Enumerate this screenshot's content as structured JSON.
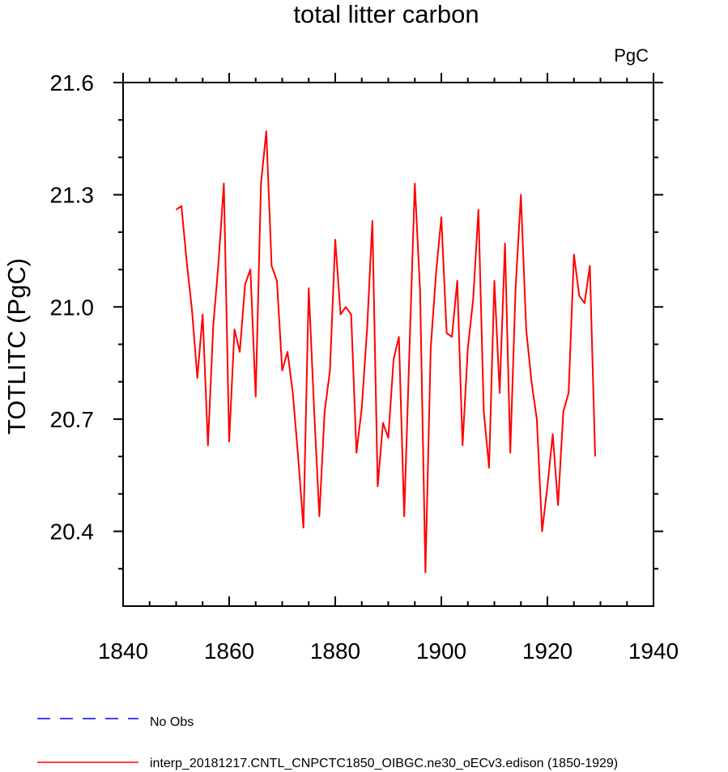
{
  "chart_data": {
    "type": "line",
    "title": "total litter carbon",
    "units_label": "PgC",
    "xlabel": "",
    "ylabel": "TOTLITC  (PgC)",
    "xlim": [
      1840,
      1940
    ],
    "ylim": [
      20.2,
      21.6
    ],
    "x_ticks": [
      1840,
      1860,
      1880,
      1900,
      1920,
      1940
    ],
    "x_tick_labels": [
      "1840",
      "1860",
      "1880",
      "1900",
      "1920",
      "1940"
    ],
    "y_ticks": [
      20.4,
      20.7,
      21.0,
      21.3,
      21.6
    ],
    "y_tick_labels": [
      "20.4",
      "20.7",
      "21.0",
      "21.3",
      "21.6"
    ],
    "x_minor_ticks": [
      1845,
      1850,
      1855,
      1865,
      1870,
      1875,
      1885,
      1890,
      1895,
      1905,
      1910,
      1915,
      1925,
      1930,
      1935
    ],
    "y_minor_ticks": [
      20.3,
      20.5,
      20.6,
      20.8,
      20.9,
      21.1,
      21.2,
      21.4,
      21.5
    ],
    "series": [
      {
        "name": "interp_20181217.CNTL_CNPCTC1850_OIBGC.ne30_oECv3.edison (1850-1929)",
        "color": "#ff0000",
        "x": [
          1850,
          1851,
          1852,
          1853,
          1854,
          1855,
          1856,
          1857,
          1858,
          1859,
          1860,
          1861,
          1862,
          1863,
          1864,
          1865,
          1866,
          1867,
          1868,
          1869,
          1870,
          1871,
          1872,
          1873,
          1874,
          1875,
          1876,
          1877,
          1878,
          1879,
          1880,
          1881,
          1882,
          1883,
          1884,
          1885,
          1886,
          1887,
          1888,
          1889,
          1890,
          1891,
          1892,
          1893,
          1894,
          1895,
          1896,
          1897,
          1898,
          1899,
          1900,
          1901,
          1902,
          1903,
          1904,
          1905,
          1906,
          1907,
          1908,
          1909,
          1910,
          1911,
          1912,
          1913,
          1914,
          1915,
          1916,
          1917,
          1918,
          1919,
          1920,
          1921,
          1922,
          1923,
          1924,
          1925,
          1926,
          1927,
          1928,
          1929
        ],
        "values": [
          21.26,
          21.27,
          21.12,
          20.99,
          20.81,
          20.98,
          20.63,
          20.95,
          21.12,
          21.33,
          20.64,
          20.94,
          20.88,
          21.06,
          21.1,
          20.76,
          21.33,
          21.47,
          21.11,
          21.07,
          20.83,
          20.88,
          20.77,
          20.6,
          20.41,
          21.05,
          20.73,
          20.44,
          20.72,
          20.83,
          21.18,
          20.98,
          21.0,
          20.98,
          20.61,
          20.73,
          20.94,
          21.23,
          20.52,
          20.69,
          20.65,
          20.86,
          20.92,
          20.44,
          20.89,
          21.33,
          21.04,
          20.29,
          20.89,
          21.09,
          21.24,
          20.93,
          20.92,
          21.07,
          20.63,
          20.89,
          21.02,
          21.26,
          20.72,
          20.57,
          21.07,
          20.77,
          21.17,
          20.61,
          21.05,
          21.3,
          20.94,
          20.8,
          20.7,
          20.4,
          20.52,
          20.66,
          20.47,
          20.72,
          20.77,
          21.14,
          21.03,
          21.01,
          21.11,
          20.6
        ]
      }
    ],
    "legend": [
      {
        "label": "No Obs",
        "color": "#0000ff",
        "style": "dashed"
      },
      {
        "label": "interp_20181217.CNTL_CNPCTC1850_OIBGC.ne30_oECv3.edison (1850-1929)",
        "color": "#ff0000",
        "style": "solid"
      }
    ]
  }
}
